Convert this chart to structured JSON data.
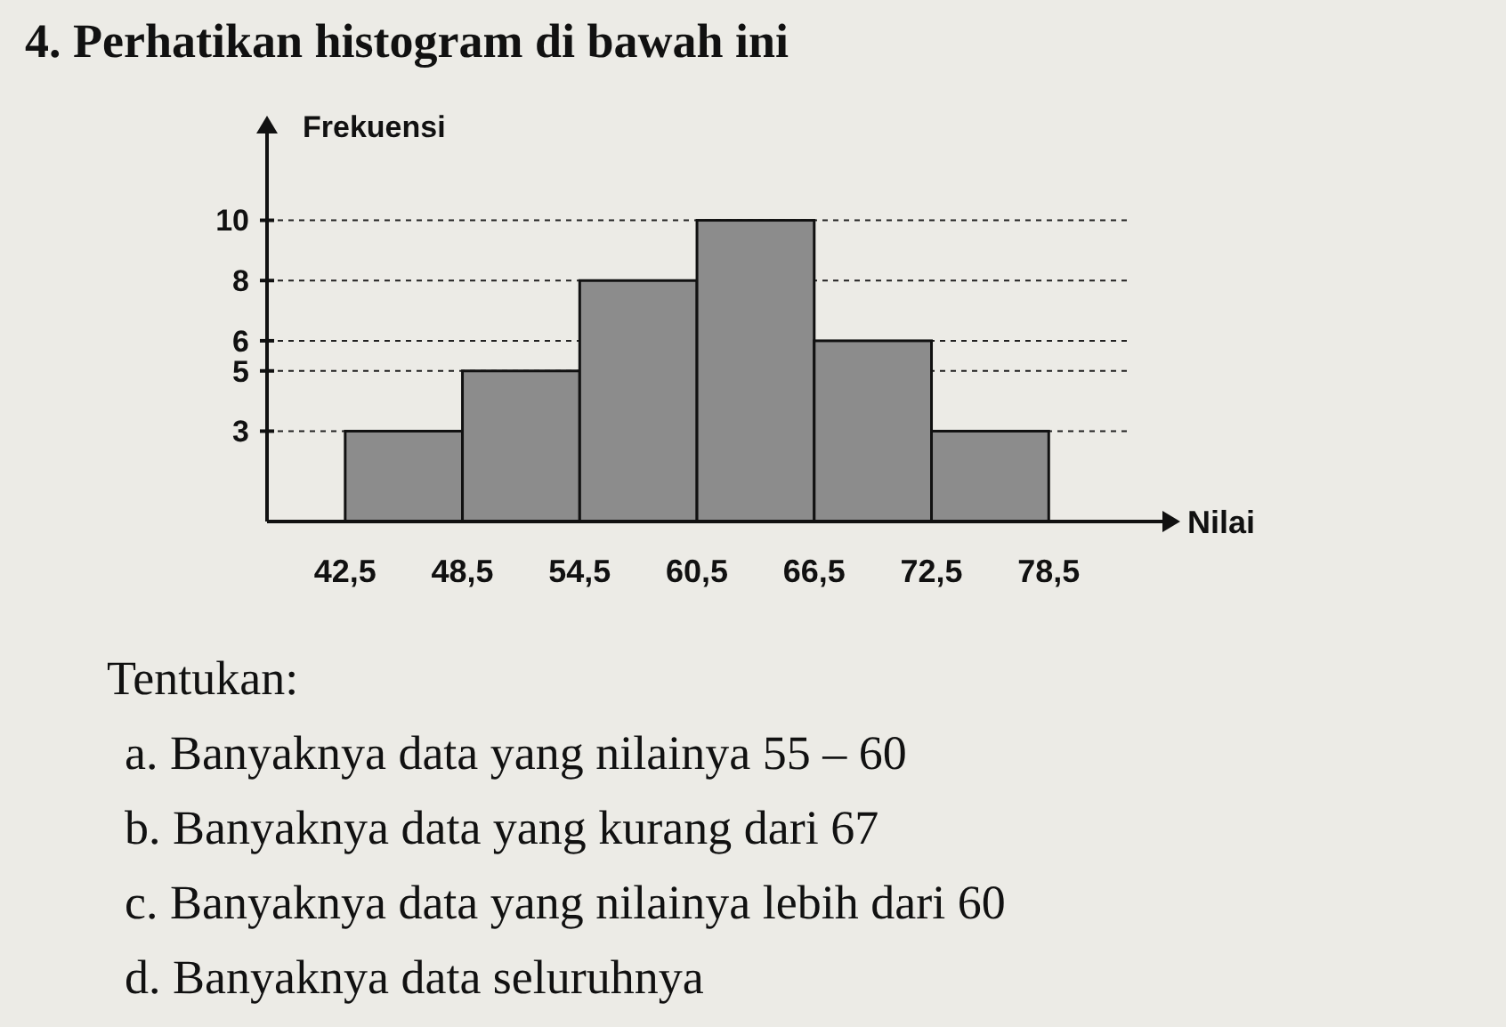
{
  "chart_data": {
    "type": "histogram",
    "title": "4. Perhatikan histogram di bawah ini",
    "ylabel": "Frekuensi",
    "xlabel": "Nilai",
    "bins": [
      42.5,
      48.5,
      54.5,
      60.5,
      66.5,
      72.5,
      78.5
    ],
    "values": [
      3,
      5,
      8,
      10,
      6,
      3
    ],
    "color": "#8c8c8c",
    "xlim": [
      38.5,
      84.5
    ],
    "xticks": [
      {
        "value": 42.5,
        "label": "42,5"
      },
      {
        "value": 48.5,
        "label": "48,5"
      },
      {
        "value": 54.5,
        "label": "54,5"
      },
      {
        "value": 60.5,
        "label": "60,5"
      },
      {
        "value": 66.5,
        "label": "66,5"
      },
      {
        "value": 72.5,
        "label": "72,5"
      },
      {
        "value": 78.5,
        "label": "78,5"
      }
    ],
    "ylim": [
      0,
      13
    ],
    "yticks": [
      3,
      5,
      6,
      8,
      10
    ],
    "grid": "y",
    "annotations": [
      "Tentukan:",
      "a. Banyaknya data yang nilainya 55 – 60",
      "b. Banyaknya data yang kurang dari 67",
      "c. Banyaknya data yang nilainya lebih dari 60",
      "d. Banyaknya data seluruhnya"
    ]
  }
}
